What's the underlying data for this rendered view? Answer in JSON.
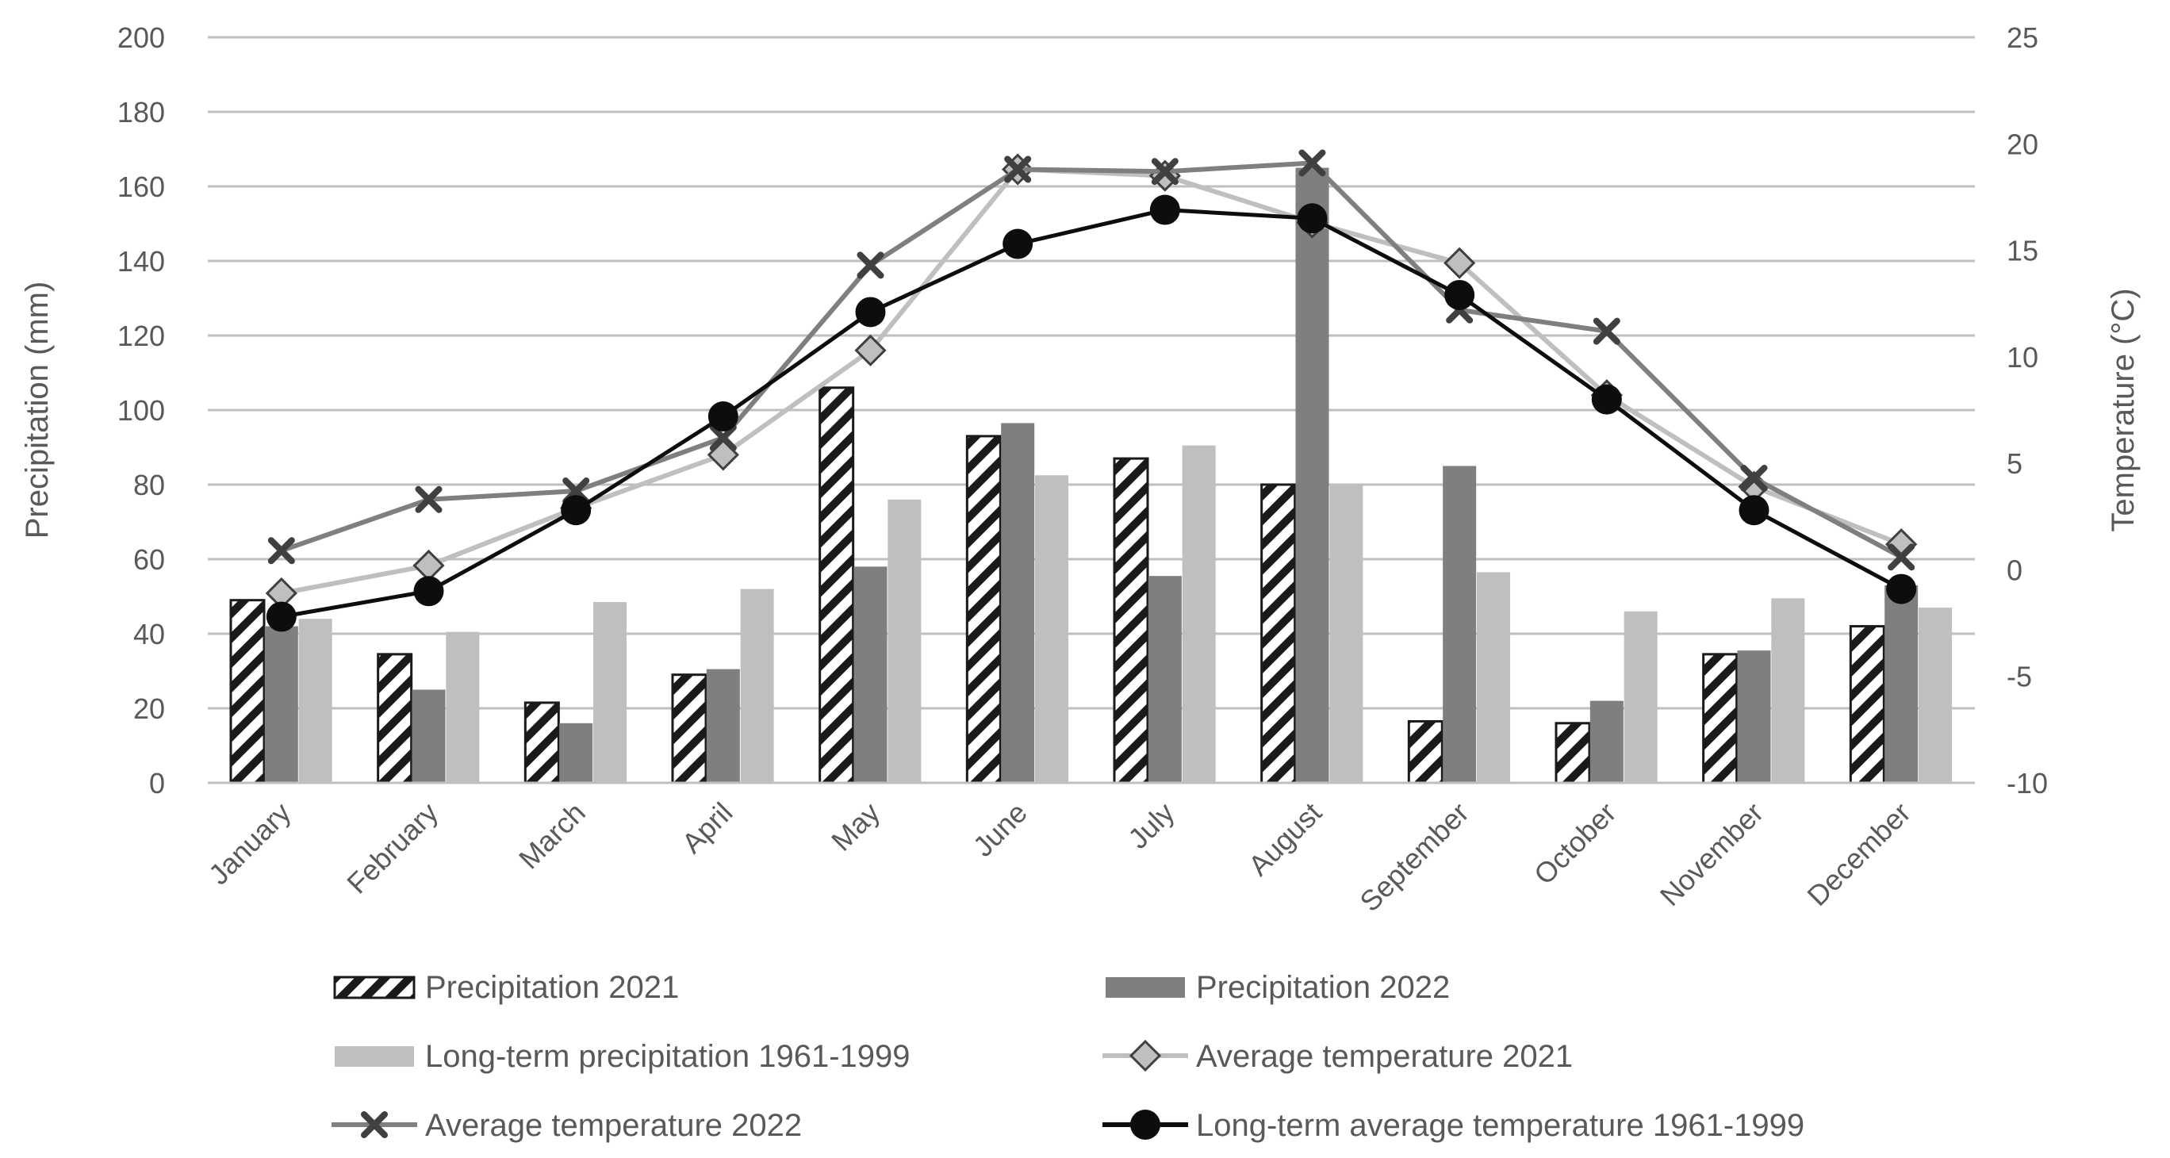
{
  "chart_data": {
    "type": "bar+line",
    "categories": [
      "January",
      "February",
      "March",
      "April",
      "May",
      "June",
      "July",
      "August",
      "September",
      "October",
      "November",
      "December"
    ],
    "ylabel_left": "Precipitation (mm)",
    "ylabel_right": "Temperature (°C)",
    "ylim_left": [
      0,
      200
    ],
    "ylim_right": [
      -10,
      25
    ],
    "yticks_left": [
      "0",
      "20",
      "40",
      "60",
      "80",
      "100",
      "120",
      "140",
      "160",
      "180",
      "200"
    ],
    "yticks_right": [
      "-10",
      "-5",
      "0",
      "5",
      "10",
      "15",
      "20",
      "25"
    ],
    "grid": true,
    "bar_series": [
      {
        "name": "Precipitation 2021",
        "pattern": "hatch",
        "color": "#262626",
        "values": [
          49,
          34.5,
          21.5,
          29,
          106,
          93,
          87,
          80,
          16.5,
          16,
          34.5,
          42
        ]
      },
      {
        "name": "Precipitation 2022",
        "color": "#7f7f7f",
        "values": [
          42,
          25,
          16,
          30.5,
          58,
          96.5,
          55.5,
          165,
          85,
          22,
          35.5,
          53
        ]
      },
      {
        "name": "Long-term  precipitation 1961-1999",
        "color": "#bfbfbf",
        "values": [
          44,
          40.5,
          48.5,
          52,
          76,
          82.5,
          90.5,
          80,
          56.5,
          46,
          49.5,
          47
        ]
      }
    ],
    "line_series": [
      {
        "name": "Average temperature 2021",
        "marker": "diamond",
        "color": "#bfbfbf",
        "values": [
          -1.1,
          0.2,
          2.9,
          5.4,
          10.3,
          18.8,
          18.5,
          16.3,
          14.4,
          8.2,
          3.9,
          1.2
        ]
      },
      {
        "name": "Average temperature 2022",
        "marker": "x",
        "color": "#7f7f7f",
        "values": [
          0.9,
          3.3,
          3.7,
          6.2,
          14.3,
          18.8,
          18.7,
          19.1,
          12.2,
          11.2,
          4.3,
          0.6
        ]
      },
      {
        "name": "Long-term average temperature 1961-1999",
        "marker": "circle",
        "color": "#0d0d0d",
        "values": [
          -2.2,
          -1.0,
          2.8,
          7.2,
          12.1,
          15.3,
          16.9,
          16.5,
          12.9,
          8.0,
          2.8,
          -0.9
        ]
      }
    ],
    "legend_position": "bottom"
  }
}
